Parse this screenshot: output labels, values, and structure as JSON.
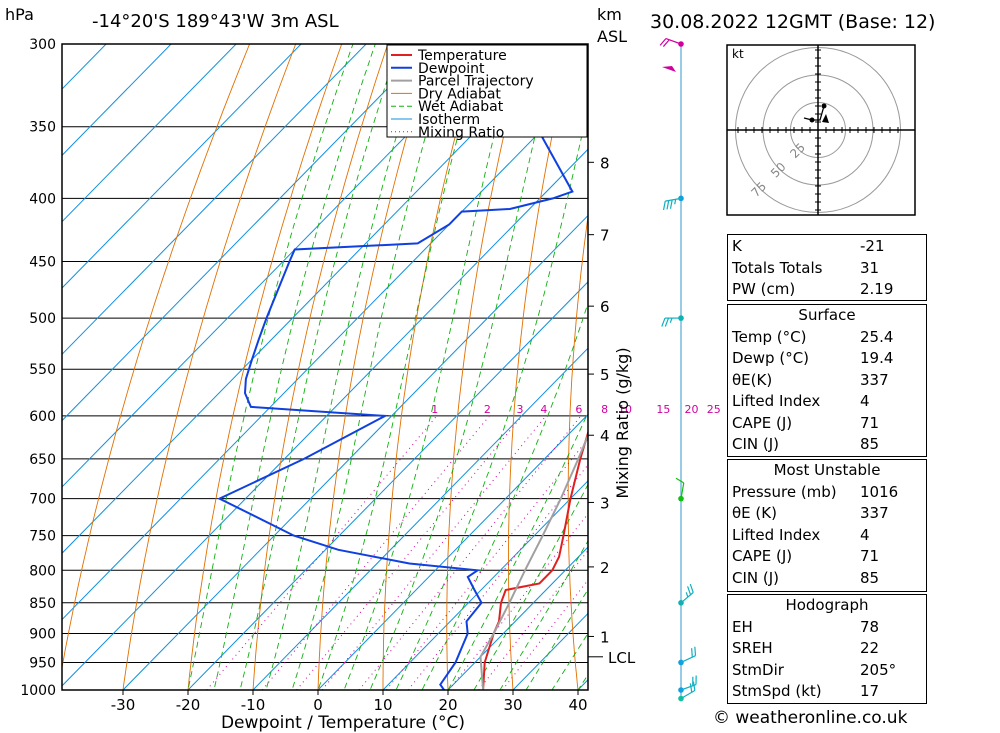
{
  "header": {
    "pressure_unit": "hPa",
    "location": "-14°20'S  189°43'W  3m  ASL",
    "km_label": "km",
    "asl_label": "ASL",
    "datetime": "30.08.2022  12GMT  (Base: 12)"
  },
  "chart_data": {
    "type": "line",
    "subtype": "skew-T log-P",
    "xlabel": "Dewpoint / Temperature (°C)",
    "ylabel": "hPa",
    "secondary_ylabel": "Mixing Ratio (g/kg)",
    "x_ticks": [
      -30,
      -20,
      -10,
      0,
      10,
      20,
      30,
      40
    ],
    "pressure_ticks": [
      300,
      350,
      400,
      450,
      500,
      550,
      600,
      650,
      700,
      750,
      800,
      850,
      900,
      950,
      1000
    ],
    "km_ticks": [
      {
        "km": "1",
        "p": 905
      },
      {
        "km": "2",
        "p": 795
      },
      {
        "km": "3",
        "p": 705
      },
      {
        "km": "4",
        "p": 622
      },
      {
        "km": "5",
        "p": 555
      },
      {
        "km": "6",
        "p": 489
      },
      {
        "km": "7",
        "p": 428
      },
      {
        "km": "8",
        "p": 374
      }
    ],
    "lcl": {
      "label": "LCL",
      "p": 940
    },
    "mixing_ratio_labels": [
      "1",
      "2",
      "3",
      "4",
      "6",
      "8",
      "10",
      "15",
      "20",
      "25"
    ],
    "legend": [
      "Temperature",
      "Dewpoint",
      "Parcel Trajectory",
      "Dry Adiabat",
      "Wet Adiabat",
      "Isotherm",
      "Mixing Ratio"
    ],
    "colors": {
      "temperature": "#e02020",
      "dewpoint": "#1040e0",
      "parcel": "#a0a0a0",
      "dry_adiabat": "#e07000",
      "wet_adiabat": "#10b010",
      "isotherm": "#1090e0",
      "mixing_ratio": "#d000a0"
    },
    "series": [
      {
        "name": "Temperature",
        "points": [
          {
            "p": 1000,
            "t": 25.4
          },
          {
            "p": 950,
            "t": 21.5
          },
          {
            "p": 900,
            "t": 18.5
          },
          {
            "p": 880,
            "t": 17.5
          },
          {
            "p": 850,
            "t": 15
          },
          {
            "p": 830,
            "t": 13.8
          },
          {
            "p": 820,
            "t": 18
          },
          {
            "p": 800,
            "t": 18
          },
          {
            "p": 780,
            "t": 17
          },
          {
            "p": 750,
            "t": 14.5
          },
          {
            "p": 700,
            "t": 10
          },
          {
            "p": 650,
            "t": 5.5
          },
          {
            "p": 600,
            "t": 1
          },
          {
            "p": 570,
            "t": -2.2
          },
          {
            "p": 550,
            "t": -4
          },
          {
            "p": 530,
            "t": -5.5
          },
          {
            "p": 500,
            "t": -7.5
          },
          {
            "p": 450,
            "t": -13
          },
          {
            "p": 420,
            "t": -17.5
          },
          {
            "p": 410,
            "t": -19.5
          },
          {
            "p": 400,
            "t": -20
          },
          {
            "p": 350,
            "t": -28
          },
          {
            "p": 300,
            "t": -38
          }
        ]
      },
      {
        "name": "Dewpoint",
        "points": [
          {
            "p": 1000,
            "t": 19.4
          },
          {
            "p": 990,
            "t": 18
          },
          {
            "p": 950,
            "t": 17
          },
          {
            "p": 900,
            "t": 14.5
          },
          {
            "p": 880,
            "t": 12.5
          },
          {
            "p": 850,
            "t": 12
          },
          {
            "p": 830,
            "t": 9
          },
          {
            "p": 810,
            "t": 6
          },
          {
            "p": 800,
            "t": 6.5
          },
          {
            "p": 790,
            "t": -5
          },
          {
            "p": 770,
            "t": -18
          },
          {
            "p": 750,
            "t": -27
          },
          {
            "p": 700,
            "t": -44
          },
          {
            "p": 650,
            "t": -37
          },
          {
            "p": 600,
            "t": -31
          },
          {
            "p": 590,
            "t": -53
          },
          {
            "p": 575,
            "t": -56
          },
          {
            "p": 560,
            "t": -58
          },
          {
            "p": 540,
            "t": -60
          },
          {
            "p": 520,
            "t": -62
          },
          {
            "p": 500,
            "t": -64
          },
          {
            "p": 450,
            "t": -69
          },
          {
            "p": 440,
            "t": -70
          },
          {
            "p": 435,
            "t": -52
          },
          {
            "p": 420,
            "t": -50
          },
          {
            "p": 410,
            "t": -50
          },
          {
            "p": 408,
            "t": -43
          },
          {
            "p": 400,
            "t": -38
          },
          {
            "p": 395,
            "t": -36
          },
          {
            "p": 340,
            "t": -55
          },
          {
            "p": 300,
            "t": -54
          }
        ]
      },
      {
        "name": "Parcel Trajectory",
        "points": [
          {
            "p": 1000,
            "t": 25.4
          },
          {
            "p": 940,
            "t": 20
          },
          {
            "p": 900,
            "t": 18.5
          },
          {
            "p": 850,
            "t": 16.3
          },
          {
            "p": 800,
            "t": 13.8
          },
          {
            "p": 750,
            "t": 11.3
          },
          {
            "p": 700,
            "t": 8.5
          },
          {
            "p": 650,
            "t": 5.2
          },
          {
            "p": 600,
            "t": 1.5
          },
          {
            "p": 550,
            "t": -2.6
          },
          {
            "p": 500,
            "t": -7.6
          },
          {
            "p": 450,
            "t": -13.5
          },
          {
            "p": 400,
            "t": -20.8
          },
          {
            "p": 350,
            "t": -29.8
          },
          {
            "p": 300,
            "t": -40.5
          }
        ]
      }
    ],
    "wind_barbs": [
      {
        "p": 1000,
        "dir": 110,
        "kt": 20
      },
      {
        "p": 1016,
        "dir": 120,
        "kt": 20
      },
      {
        "p": 950,
        "dir": 115,
        "kt": 20
      },
      {
        "p": 850,
        "dir": 130,
        "kt": 15
      },
      {
        "p": 700,
        "dir": 170,
        "kt": 10
      },
      {
        "p": 500,
        "dir": 270,
        "kt": 15
      },
      {
        "p": 400,
        "dir": 280,
        "kt": 25
      },
      {
        "p": 300,
        "dir": 250,
        "kt": 20
      }
    ],
    "hodograph": {
      "unit": "kt",
      "rings": [
        25,
        50,
        75
      ],
      "points": [
        {
          "u": -7,
          "v": 6
        },
        {
          "u": -3,
          "v": 5
        },
        {
          "u": 1,
          "v": 5
        },
        {
          "u": 3,
          "v": 12
        }
      ],
      "storm_motion": {
        "u": 2,
        "v": 4
      }
    }
  },
  "indices": {
    "k_label": "K",
    "k": "-21",
    "tt_label": "Totals Totals",
    "tt": "31",
    "pw_label": "PW (cm)",
    "pw": "2.19"
  },
  "surface": {
    "title": "Surface",
    "temp_label": "Temp (°C)",
    "temp": "25.4",
    "dewp_label": "Dewp (°C)",
    "dewp": "19.4",
    "theta_label": "θE(K)",
    "theta": "337",
    "li_label": "Lifted Index",
    "li": "4",
    "cape_label": "CAPE (J)",
    "cape": "71",
    "cin_label": "CIN (J)",
    "cin": "85"
  },
  "most_unstable": {
    "title": "Most Unstable",
    "pressure_label": "Pressure (mb)",
    "pressure": "1016",
    "theta_label": "θE (K)",
    "theta": "337",
    "li_label": "Lifted Index",
    "li": "4",
    "cape_label": "CAPE (J)",
    "cape": "71",
    "cin_label": "CIN (J)",
    "cin": "85"
  },
  "hodo_table": {
    "title": "Hodograph",
    "eh_label": "EH",
    "eh": "78",
    "sreh_label": "SREH",
    "sreh": "22",
    "stmdir_label": "StmDir",
    "stmdir": "205°",
    "stmspd_label": "StmSpd (kt)",
    "stmspd": "17"
  },
  "footer": {
    "copyright": "© weatheronline.co.uk"
  }
}
